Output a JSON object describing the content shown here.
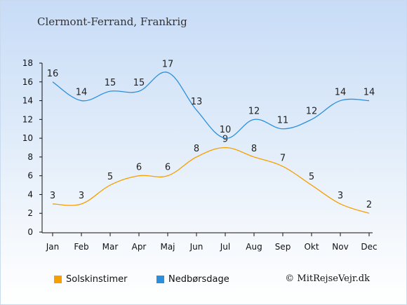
{
  "page": {
    "title": "Clermont-Ferrand, Frankrig",
    "credit": "© MitRejseVejr.dk"
  },
  "chart_data": {
    "type": "line",
    "title": "Clermont-Ferrand, Frankrig",
    "categories": [
      "Jan",
      "Feb",
      "Mar",
      "Apr",
      "Maj",
      "Jun",
      "Jul",
      "Aug",
      "Sep",
      "Okt",
      "Nov",
      "Dec"
    ],
    "series": [
      {
        "name": "Solskinstimer",
        "color": "#f5a000",
        "values": [
          3,
          3,
          5,
          6,
          6,
          8,
          9,
          8,
          7,
          5,
          3,
          2
        ]
      },
      {
        "name": "Nedbørsdage",
        "color": "#2b8fdc",
        "values": [
          16,
          14,
          15,
          15,
          17,
          13,
          10,
          12,
          11,
          12,
          14,
          14
        ]
      }
    ],
    "ylim": [
      0,
      18
    ],
    "yticks": [
      0,
      2,
      4,
      6,
      8,
      10,
      12,
      14,
      16,
      18
    ],
    "legend": "bottom"
  }
}
